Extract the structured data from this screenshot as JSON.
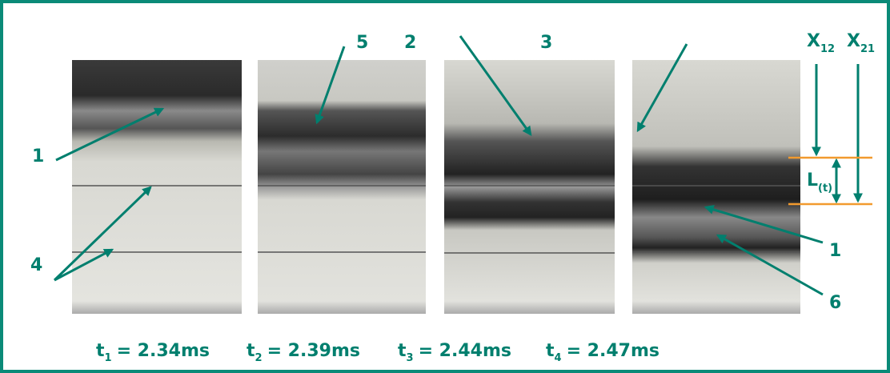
{
  "labels": [
    "1",
    "5",
    "2",
    "3",
    "4",
    "1",
    "6"
  ],
  "markers": {
    "x12": {
      "symbol": "X",
      "subscript": "12"
    },
    "x21": {
      "symbol": "X",
      "subscript": "21"
    },
    "length": {
      "symbol": "L",
      "subscript": "(t)"
    }
  },
  "times": [
    {
      "symbol": "t",
      "subscript": "1",
      "text": "= 2.34ms"
    },
    {
      "symbol": "t",
      "subscript": "2",
      "text": "= 2.39ms"
    },
    {
      "symbol": "t",
      "subscript": "3",
      "text": "= 2.44ms"
    },
    {
      "symbol": "t",
      "subscript": "4",
      "text": "= 2.47ms"
    }
  ]
}
